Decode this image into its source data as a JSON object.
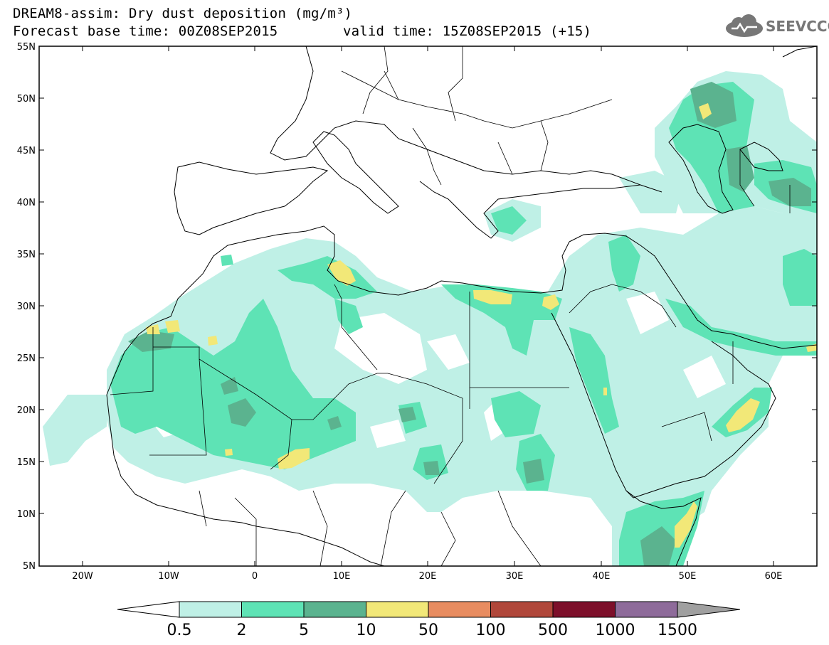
{
  "title": {
    "line1": "DREAM8-assim: Dry dust deposition (mg/m³)",
    "line2_left": "Forecast base time: 00Z08SEP2015",
    "line2_right": "valid time: 15Z08SEP2015 (+15)"
  },
  "logo": {
    "text": "SEEVCCC",
    "icon": "cloud-icon"
  },
  "axes": {
    "lat_labels": [
      "55N",
      "50N",
      "45N",
      "40N",
      "35N",
      "30N",
      "25N",
      "20N",
      "15N",
      "10N",
      "5N"
    ],
    "lon_labels": [
      "20W",
      "10W",
      "0",
      "10E",
      "20E",
      "30E",
      "40E",
      "50E",
      "60E"
    ]
  },
  "colorbar": {
    "colors": [
      "#bff0e6",
      "#5ee3b5",
      "#5bb38f",
      "#f2e878",
      "#e88c60",
      "#b0473a",
      "#7d0f2a",
      "#8e6b9a",
      "#a0a0a0"
    ],
    "labels": [
      "0.5",
      "2",
      "5",
      "10",
      "50",
      "100",
      "500",
      "1000",
      "1500"
    ]
  },
  "legend_colors": {
    "c1": "#bff0e6",
    "c2": "#5ee3b5",
    "c3": "#5bb38f",
    "c4": "#f2e878"
  }
}
